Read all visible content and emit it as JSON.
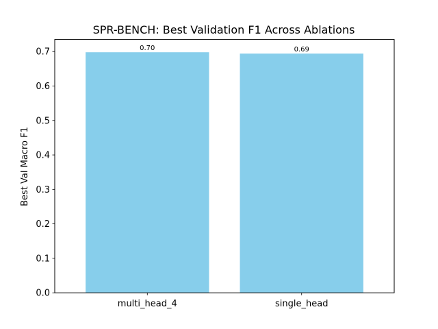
{
  "chart_data": {
    "type": "bar",
    "title": "SPR-BENCH: Best Validation F1 Across Ablations",
    "xlabel": "",
    "ylabel": "Best Val Macro F1",
    "categories": [
      "multi_head_4",
      "single_head"
    ],
    "values": [
      0.698,
      0.694
    ],
    "value_labels": [
      "0.70",
      "0.69"
    ],
    "bar_color": "#87ceeb",
    "ylim": [
      0,
      0.735
    ],
    "yticks": [
      0.0,
      0.1,
      0.2,
      0.3,
      0.4,
      0.5,
      0.6,
      0.7
    ],
    "ytick_labels": [
      "0.0",
      "0.1",
      "0.2",
      "0.3",
      "0.4",
      "0.5",
      "0.6",
      "0.7"
    ],
    "grid": false,
    "legend": "none"
  }
}
